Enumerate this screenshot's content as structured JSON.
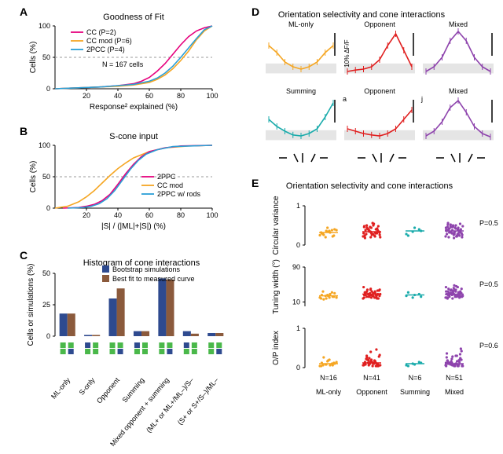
{
  "colors": {
    "pink": "#e6007d",
    "orange": "#f5a623",
    "blue": "#2a9fd6",
    "teal": "#1aabab",
    "red": "#e02020",
    "purple": "#8e44ad",
    "darkblue": "#2e4a8f",
    "brown": "#8b5a3c",
    "gray": "#cccccc",
    "lightgray": "#e5e5e5",
    "axis": "#333333",
    "green_box": "#4ab84a"
  },
  "panelA": {
    "label": "A",
    "title": "Goodness of Fit",
    "xlabel": "Response² explained (%)",
    "ylabel": "Cells (%)",
    "n_text": "N = 167 cells",
    "xlim": [
      0,
      100
    ],
    "ylim": [
      0,
      100
    ],
    "xticks": [
      20,
      40,
      60,
      80,
      100
    ],
    "yticks": [
      0,
      50,
      100
    ],
    "dashed_y": 50,
    "legend": [
      {
        "label": "CC (P=2)",
        "color": "#e6007d"
      },
      {
        "label": "CC mod (P=6)",
        "color": "#f5a623"
      },
      {
        "label": "2PCC (P=4)",
        "color": "#2a9fd6"
      }
    ],
    "series": {
      "pink": [
        [
          0,
          0
        ],
        [
          10,
          1
        ],
        [
          20,
          2
        ],
        [
          30,
          3
        ],
        [
          40,
          5
        ],
        [
          50,
          8
        ],
        [
          55,
          12
        ],
        [
          60,
          18
        ],
        [
          65,
          28
        ],
        [
          70,
          40
        ],
        [
          75,
          55
        ],
        [
          80,
          70
        ],
        [
          85,
          83
        ],
        [
          90,
          92
        ],
        [
          95,
          97
        ],
        [
          100,
          100
        ]
      ],
      "orange": [
        [
          0,
          0
        ],
        [
          10,
          1
        ],
        [
          20,
          2
        ],
        [
          30,
          3
        ],
        [
          40,
          4
        ],
        [
          50,
          6
        ],
        [
          60,
          10
        ],
        [
          65,
          15
        ],
        [
          70,
          22
        ],
        [
          75,
          32
        ],
        [
          80,
          45
        ],
        [
          85,
          60
        ],
        [
          90,
          78
        ],
        [
          95,
          92
        ],
        [
          100,
          100
        ]
      ],
      "blue": [
        [
          0,
          0
        ],
        [
          10,
          1
        ],
        [
          20,
          2
        ],
        [
          30,
          3
        ],
        [
          40,
          5
        ],
        [
          50,
          7
        ],
        [
          60,
          12
        ],
        [
          65,
          17
        ],
        [
          70,
          25
        ],
        [
          75,
          36
        ],
        [
          80,
          50
        ],
        [
          85,
          65
        ],
        [
          90,
          80
        ],
        [
          95,
          94
        ],
        [
          100,
          100
        ]
      ]
    }
  },
  "panelB": {
    "label": "B",
    "title": "S-cone input",
    "xlabel": "|S| / (|ML|+|S|) (%)",
    "ylabel": "Cells (%)",
    "xlim": [
      0,
      100
    ],
    "ylim": [
      0,
      100
    ],
    "xticks": [
      20,
      40,
      60,
      80,
      100
    ],
    "yticks": [
      0,
      50,
      100
    ],
    "dashed_y": 50,
    "legend": [
      {
        "label": "2PPC",
        "color": "#e6007d"
      },
      {
        "label": "CC mod",
        "color": "#f5a623"
      },
      {
        "label": "2PPC w/ rods",
        "color": "#2a9fd6"
      }
    ],
    "series": {
      "pink": [
        [
          5,
          0
        ],
        [
          15,
          1
        ],
        [
          20,
          3
        ],
        [
          25,
          6
        ],
        [
          30,
          12
        ],
        [
          35,
          22
        ],
        [
          40,
          38
        ],
        [
          45,
          55
        ],
        [
          50,
          70
        ],
        [
          55,
          82
        ],
        [
          60,
          90
        ],
        [
          70,
          96
        ],
        [
          80,
          99
        ],
        [
          100,
          100
        ]
      ],
      "blue": [
        [
          8,
          0
        ],
        [
          18,
          1
        ],
        [
          23,
          3
        ],
        [
          28,
          7
        ],
        [
          33,
          15
        ],
        [
          38,
          28
        ],
        [
          43,
          45
        ],
        [
          48,
          62
        ],
        [
          53,
          76
        ],
        [
          58,
          86
        ],
        [
          65,
          93
        ],
        [
          75,
          98
        ],
        [
          100,
          100
        ]
      ],
      "orange": [
        [
          0,
          0
        ],
        [
          8,
          3
        ],
        [
          15,
          10
        ],
        [
          20,
          18
        ],
        [
          25,
          28
        ],
        [
          30,
          40
        ],
        [
          35,
          52
        ],
        [
          40,
          63
        ],
        [
          45,
          72
        ],
        [
          50,
          80
        ],
        [
          60,
          90
        ],
        [
          70,
          96
        ],
        [
          85,
          99
        ],
        [
          100,
          100
        ]
      ]
    }
  },
  "panelC": {
    "label": "C",
    "title": "Histogram of cone interactions",
    "ylabel": "Cells or simulations (%)",
    "ylim": [
      0,
      50
    ],
    "yticks": [
      0,
      25,
      50
    ],
    "legend": [
      {
        "label": "Bootstrap simulations",
        "color": "#2e4a8f"
      },
      {
        "label": "Best fit to measured curve",
        "color": "#8b5a3c"
      }
    ],
    "categories": [
      "ML-only",
      "S-only",
      "Opponent",
      "Summing",
      "Mixed opponent + summing",
      "(ML+ or ML+/ML–)/S–",
      "(S+ or S+/S–)/ML–"
    ],
    "values_blue": [
      18,
      1,
      30,
      4,
      46,
      4,
      2.5
    ],
    "values_brown": [
      18,
      1,
      38,
      4,
      45,
      2,
      2.5
    ]
  },
  "panelD": {
    "label": "D",
    "title": "Orientation selectivity and cone interactions",
    "scalebar_text": "10% ΔF/F",
    "subplots": [
      {
        "name": "ML-only",
        "color": "#f5a623",
        "letter": "",
        "y": [
          0.7,
          0.55,
          0.35,
          0.25,
          0.2,
          0.25,
          0.35,
          0.55,
          0.7
        ]
      },
      {
        "name": "Opponent",
        "color": "#e02020",
        "letter": "",
        "y": [
          0.15,
          0.18,
          0.2,
          0.25,
          0.4,
          0.7,
          0.95,
          0.6,
          0.25
        ]
      },
      {
        "name": "Mixed",
        "color": "#8e44ad",
        "letter": "",
        "y": [
          0.15,
          0.25,
          0.45,
          0.8,
          1.0,
          0.8,
          0.45,
          0.25,
          0.15
        ]
      },
      {
        "name": "Summing",
        "color": "#1aabab",
        "letter": "",
        "y": [
          0.55,
          0.4,
          0.3,
          0.22,
          0.2,
          0.25,
          0.35,
          0.6,
          0.9
        ]
      },
      {
        "name": "Opponent",
        "color": "#e02020",
        "letter": "a",
        "y": [
          0.35,
          0.3,
          0.25,
          0.22,
          0.2,
          0.25,
          0.35,
          0.55,
          0.75
        ]
      },
      {
        "name": "Mixed",
        "color": "#8e44ad",
        "letter": "j",
        "y": [
          0.2,
          0.3,
          0.5,
          0.8,
          0.95,
          0.7,
          0.4,
          0.25,
          0.18
        ]
      }
    ]
  },
  "panelE": {
    "label": "E",
    "title": "Orientation selectivity and cone interactions",
    "groups": [
      "ML-only",
      "Opponent",
      "Summing",
      "Mixed"
    ],
    "group_colors": [
      "#f5a623",
      "#e02020",
      "#1aabab",
      "#8e44ad"
    ],
    "N": [
      "N=16",
      "N=41",
      "N=6",
      "N=51"
    ],
    "rows": [
      {
        "ylabel": "Circular variance",
        "ylim": [
          0,
          1
        ],
        "yticks": [
          0,
          1
        ],
        "pval": "P=0.5",
        "points": [
          [
            0.25,
            0.36,
            0.22,
            0.3,
            0.34,
            0.4,
            0.26,
            0.32,
            0.38,
            0.2,
            0.38,
            0.32,
            0.44,
            0.24,
            0.28,
            0.36
          ],
          [
            0.22,
            0.34,
            0.4,
            0.18,
            0.3,
            0.36,
            0.44,
            0.5,
            0.26,
            0.38,
            0.32,
            0.48,
            0.2,
            0.42,
            0.28,
            0.56,
            0.34,
            0.4,
            0.24,
            0.3,
            0.46,
            0.32,
            0.38,
            0.26,
            0.48,
            0.42,
            0.54,
            0.2,
            0.36,
            0.3,
            0.24,
            0.44,
            0.38,
            0.5,
            0.28,
            0.32,
            0.4,
            0.22,
            0.46,
            0.34,
            0.3
          ],
          [
            0.28,
            0.34,
            0.4,
            0.24,
            0.44,
            0.36
          ],
          [
            0.22,
            0.3,
            0.38,
            0.46,
            0.18,
            0.34,
            0.42,
            0.5,
            0.26,
            0.32,
            0.4,
            0.28,
            0.48,
            0.36,
            0.2,
            0.44,
            0.3,
            0.52,
            0.24,
            0.38,
            0.46,
            0.32,
            0.56,
            0.28,
            0.4,
            0.34,
            0.22,
            0.48,
            0.3,
            0.44,
            0.38,
            0.26,
            0.54,
            0.32,
            0.42,
            0.2,
            0.46,
            0.28,
            0.36,
            0.5,
            0.24,
            0.4,
            0.34,
            0.3,
            0.48,
            0.22,
            0.44,
            0.38,
            0.26,
            0.52,
            0.32
          ]
        ]
      },
      {
        "ylabel": "Tuning width (°)",
        "ylim": [
          0,
          90
        ],
        "yticks": [
          10,
          90
        ],
        "pval": "P=0.5",
        "points": [
          [
            20,
            18,
            22,
            26,
            24,
            30,
            16,
            28,
            20,
            24,
            32,
            18,
            26,
            22,
            34,
            20
          ],
          [
            18,
            22,
            26,
            30,
            20,
            28,
            34,
            24,
            38,
            22,
            30,
            26,
            40,
            18,
            32,
            24,
            36,
            28,
            20,
            44,
            30,
            22,
            26,
            34,
            18,
            38,
            30,
            28,
            24,
            20,
            32,
            26,
            36,
            22,
            30,
            24,
            28,
            34,
            20,
            38,
            26
          ],
          [
            24,
            20,
            28,
            32,
            26,
            22
          ],
          [
            20,
            26,
            32,
            18,
            28,
            34,
            22,
            38,
            24,
            30,
            44,
            20,
            36,
            26,
            30,
            22,
            40,
            28,
            24,
            34,
            18,
            32,
            26,
            38,
            22,
            30,
            46,
            24,
            36,
            28,
            20,
            42,
            30,
            26,
            34,
            22,
            38,
            24,
            28,
            32,
            20,
            40,
            26,
            30,
            36,
            22,
            44,
            28,
            24,
            34,
            48
          ]
        ]
      },
      {
        "ylabel": "O/P index",
        "ylim": [
          0,
          1
        ],
        "yticks": [
          0,
          1
        ],
        "pval": "P=0.6",
        "points": [
          [
            0.04,
            0.08,
            0.06,
            0.12,
            0.18,
            0.1,
            0.26,
            0.06,
            0.14,
            0.08,
            0.1,
            0.04,
            0.16,
            0.12,
            0.06,
            0.2
          ],
          [
            0.06,
            0.1,
            0.04,
            0.14,
            0.2,
            0.08,
            0.26,
            0.12,
            0.32,
            0.06,
            0.16,
            0.1,
            0.4,
            0.08,
            0.22,
            0.04,
            0.28,
            0.12,
            0.18,
            0.06,
            0.1,
            0.46,
            0.08,
            0.14,
            0.04,
            0.2,
            0.1,
            0.06,
            0.24,
            0.12,
            0.08,
            0.16,
            0.04,
            0.3,
            0.1,
            0.06,
            0.18,
            0.12,
            0.08,
            0.14,
            0.04
          ],
          [
            0.06,
            0.1,
            0.14,
            0.04,
            0.08,
            0.12
          ],
          [
            0.06,
            0.12,
            0.04,
            0.18,
            0.08,
            0.24,
            0.1,
            0.3,
            0.06,
            0.14,
            0.04,
            0.36,
            0.08,
            0.2,
            0.12,
            0.06,
            0.42,
            0.1,
            0.16,
            0.04,
            0.28,
            0.08,
            0.14,
            0.06,
            0.48,
            0.12,
            0.1,
            0.04,
            0.22,
            0.08,
            0.18,
            0.06,
            0.34,
            0.12,
            0.1,
            0.04,
            0.16,
            0.08,
            0.26,
            0.06,
            0.14,
            0.1,
            0.04,
            0.2,
            0.08,
            0.3,
            0.12,
            0.06,
            0.18,
            0.1,
            0.04
          ]
        ]
      }
    ]
  }
}
